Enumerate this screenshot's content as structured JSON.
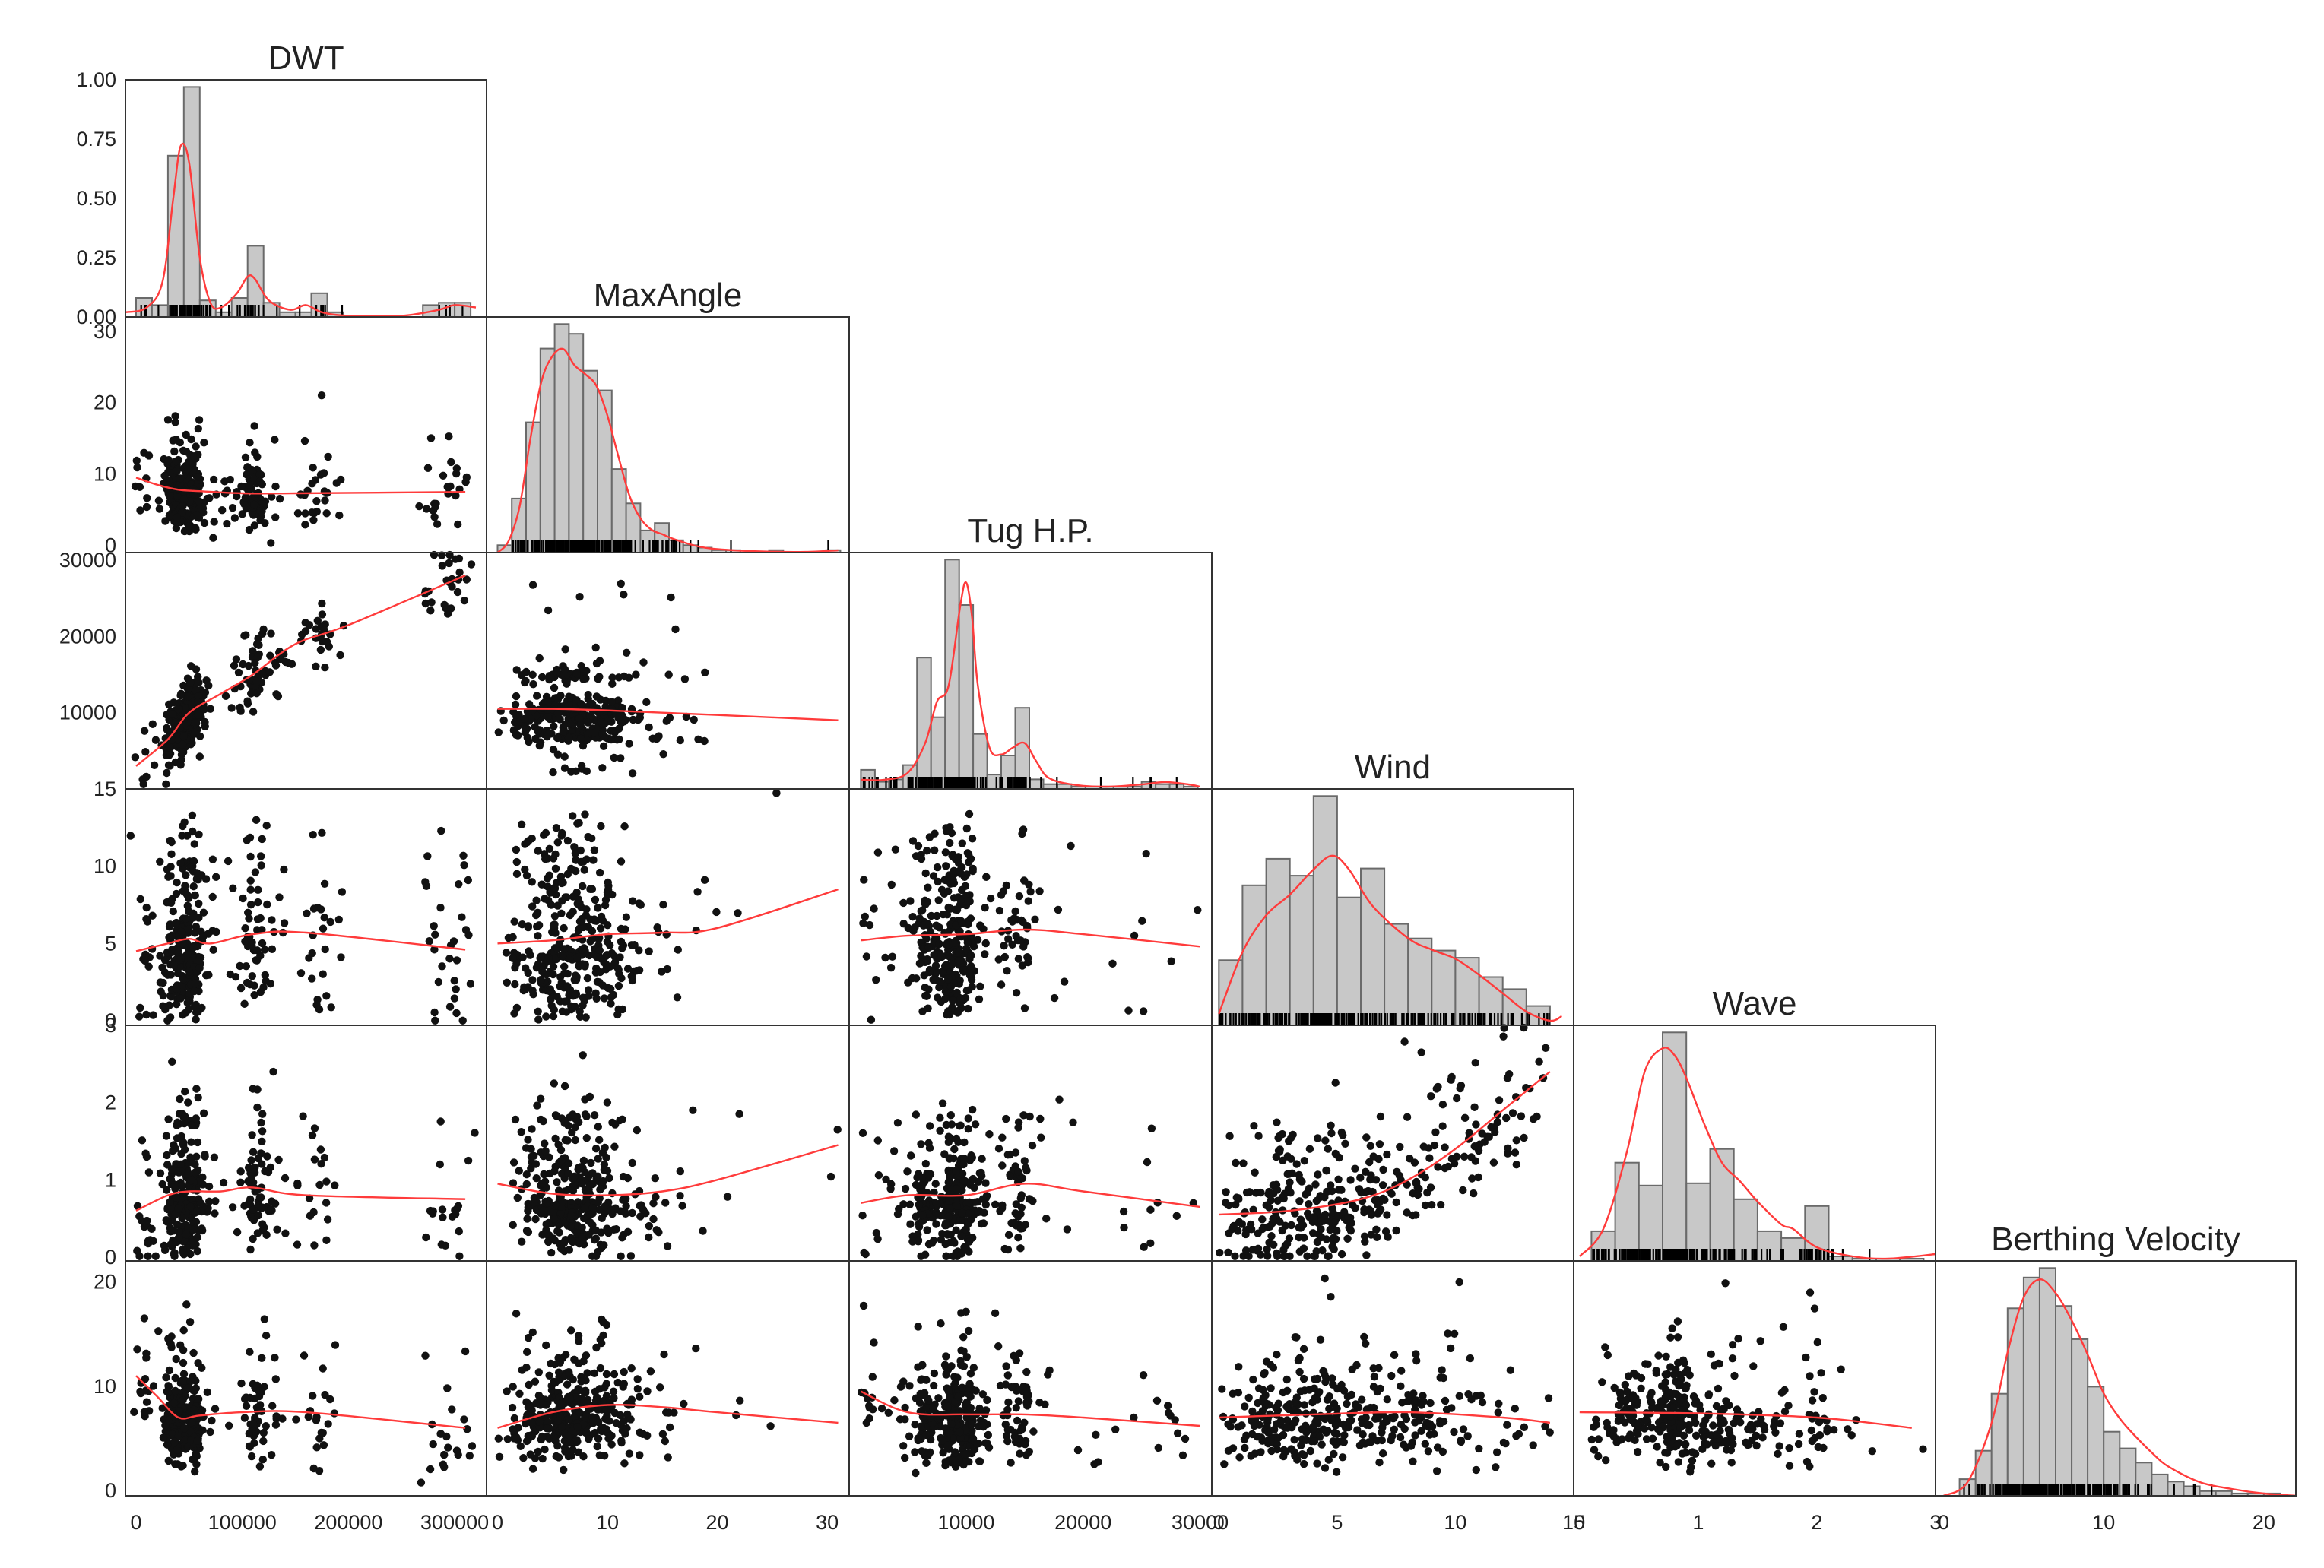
{
  "chart_data": {
    "type": "pairplot",
    "variables": [
      "DWT",
      "MaxAngle",
      "Tug H.P.",
      "Wind",
      "Wave",
      "Berthing Velocity"
    ],
    "diagonal": "histogram + KDE (red) + rug",
    "off_diagonal": "scatter + smoothed trend line (red)",
    "colors": {
      "points": "#111111",
      "trend": "#ff3b3b",
      "hist_fill": "#c8c8c8",
      "hist_edge": "#6a6a6a",
      "frame": "#333333"
    },
    "axes": {
      "DWT": {
        "range": [
          -10000,
          330000
        ],
        "ticks": [
          0,
          100000,
          200000,
          300000
        ],
        "tick_labels": [
          "0",
          "100000",
          "200000",
          "300000"
        ]
      },
      "MaxAngle": {
        "range": [
          -1,
          32
        ],
        "ticks": [
          0,
          10,
          20,
          30
        ],
        "tick_labels": [
          "0",
          "10",
          "20",
          "30"
        ]
      },
      "Tug H.P.": {
        "range": [
          0,
          31000
        ],
        "ticks": [
          10000,
          20000,
          30000
        ],
        "tick_labels": [
          "10000",
          "20000",
          "30000"
        ],
        "ticks_left": [
          10000,
          20000,
          30000
        ],
        "tick_labels_left": [
          "10000",
          "20000",
          "30000"
        ]
      },
      "Wind": {
        "range": [
          -0.3,
          15
        ],
        "ticks": [
          0,
          5,
          10,
          15
        ],
        "tick_labels": [
          "0",
          "5",
          "10",
          "15"
        ]
      },
      "Wave": {
        "range": [
          -0.05,
          3
        ],
        "ticks": [
          0,
          1,
          2,
          3
        ],
        "tick_labels": [
          "0",
          "1",
          "2",
          "3"
        ]
      },
      "Berthing Velocity": {
        "range": [
          -0.5,
          22
        ],
        "ticks": [
          0,
          10,
          20
        ],
        "tick_labels": [
          "0",
          "10",
          "20"
        ]
      }
    },
    "first_diag_y": {
      "ticks": [
        0.0,
        0.25,
        0.5,
        0.75,
        1.0
      ],
      "tick_labels": [
        "0.00",
        "0.25",
        "0.50",
        "0.75",
        "1.00"
      ]
    },
    "histograms": {
      "DWT": {
        "edges": [
          0,
          15000,
          30000,
          45000,
          60000,
          75000,
          90000,
          105000,
          120000,
          135000,
          150000,
          165000,
          180000,
          195000,
          210000,
          225000,
          240000,
          255000,
          270000,
          285000,
          300000,
          315000
        ],
        "heights": [
          0.08,
          0.05,
          0.68,
          0.97,
          0.07,
          0.02,
          0.08,
          0.3,
          0.06,
          0.02,
          0.02,
          0.1,
          0.02,
          0,
          0,
          0,
          0,
          0,
          0.05,
          0.06,
          0.06
        ]
      },
      "MaxAngle": {
        "edges": [
          0,
          1.3,
          2.6,
          3.9,
          5.2,
          6.5,
          7.8,
          9.1,
          10.4,
          11.7,
          13.0,
          14.3,
          15.6,
          16.9,
          18.2,
          19.5,
          20.8,
          22.1,
          23.4,
          24.7,
          26.0,
          27.3,
          28.6,
          29.9,
          31.2
        ],
        "heights": [
          0.03,
          0.22,
          0.53,
          0.83,
          0.93,
          0.89,
          0.74,
          0.66,
          0.34,
          0.2,
          0.09,
          0.12,
          0.05,
          0.03,
          0.02,
          0.01,
          0.01,
          0,
          0,
          0.01,
          0,
          0,
          0,
          0.01
        ]
      },
      "Tug H.P.": {
        "edges": [
          1000,
          2200,
          3400,
          4600,
          5800,
          7000,
          8200,
          9400,
          10600,
          11800,
          13000,
          14200,
          15400,
          16600,
          17800,
          19000,
          20200,
          21400,
          22600,
          23800,
          25000,
          26200,
          27400,
          28600,
          29800
        ],
        "heights": [
          0.08,
          0.03,
          0.04,
          0.1,
          0.55,
          0.3,
          0.96,
          0.77,
          0.23,
          0.06,
          0.14,
          0.34,
          0.04,
          0.02,
          0.02,
          0.01,
          0.01,
          0.01,
          0.01,
          0.01,
          0.03,
          0.02,
          0.02,
          0.01
        ]
      },
      "Wind": {
        "edges": [
          0,
          1,
          2,
          3,
          4,
          5,
          6,
          7,
          8,
          9,
          10,
          11,
          12,
          13,
          14
        ],
        "heights": [
          0.27,
          0.58,
          0.69,
          0.62,
          0.95,
          0.53,
          0.65,
          0.42,
          0.36,
          0.31,
          0.28,
          0.2,
          0.15,
          0.08
        ]
      },
      "Wave": {
        "edges": [
          0.1,
          0.3,
          0.5,
          0.7,
          0.9,
          1.1,
          1.3,
          1.5,
          1.7,
          1.9,
          2.1,
          2.3,
          2.5,
          2.7,
          2.9
        ],
        "heights": [
          0.13,
          0.43,
          0.33,
          1.0,
          0.34,
          0.49,
          0.27,
          0.13,
          0.1,
          0.24,
          0.02,
          0.01,
          0.01,
          0.01
        ]
      },
      "Berthing Velocity": {
        "edges": [
          1,
          2,
          3,
          4,
          5,
          6,
          7,
          8,
          9,
          10,
          11,
          12,
          13,
          14,
          15,
          16,
          17,
          18,
          19,
          20,
          21
        ],
        "heights": [
          0.07,
          0.19,
          0.43,
          0.79,
          0.92,
          0.96,
          0.8,
          0.66,
          0.46,
          0.27,
          0.2,
          0.14,
          0.09,
          0.06,
          0.04,
          0.02,
          0.02,
          0.01,
          0.01,
          0.01
        ]
      }
    },
    "kde": {
      "DWT": {
        "x": [
          -10000,
          10000,
          25000,
          35000,
          42000,
          50000,
          60000,
          70000,
          80000,
          95000,
          105000,
          112000,
          125000,
          145000,
          160000,
          175000,
          200000,
          250000,
          285000,
          300000,
          320000
        ],
        "y": [
          0.02,
          0.04,
          0.15,
          0.5,
          0.72,
          0.65,
          0.25,
          0.06,
          0.04,
          0.1,
          0.17,
          0.16,
          0.07,
          0.03,
          0.05,
          0.02,
          0.005,
          0.005,
          0.03,
          0.05,
          0.04
        ]
      },
      "MaxAngle": {
        "x": [
          0,
          1,
          2,
          3,
          4,
          5,
          6,
          7,
          8,
          9,
          10,
          11,
          12,
          13,
          14,
          15,
          16,
          18,
          20,
          24,
          28,
          31
        ],
        "y": [
          0,
          0.05,
          0.2,
          0.5,
          0.75,
          0.86,
          0.89,
          0.82,
          0.78,
          0.73,
          0.6,
          0.42,
          0.25,
          0.15,
          0.1,
          0.08,
          0.06,
          0.03,
          0.015,
          0.005,
          0.003,
          0.01
        ]
      },
      "Tug H.P.": {
        "x": [
          1000,
          3000,
          5000,
          6500,
          7500,
          8500,
          9500,
          10000,
          10500,
          11000,
          12000,
          13000,
          14000,
          15000,
          16000,
          17000,
          19000,
          22000,
          25000,
          27000,
          29000,
          30000
        ],
        "y": [
          0.04,
          0.04,
          0.07,
          0.2,
          0.38,
          0.45,
          0.8,
          0.9,
          0.75,
          0.45,
          0.18,
          0.15,
          0.18,
          0.2,
          0.12,
          0.05,
          0.02,
          0.01,
          0.02,
          0.03,
          0.02,
          0.01
        ]
      },
      "Wind": {
        "x": [
          0,
          1,
          2,
          3,
          4,
          4.8,
          5.5,
          6.5,
          8,
          9,
          10,
          11,
          12,
          13,
          14,
          14.5
        ],
        "y": [
          0.05,
          0.32,
          0.48,
          0.57,
          0.68,
          0.74,
          0.68,
          0.52,
          0.38,
          0.33,
          0.29,
          0.22,
          0.14,
          0.06,
          0.02,
          0.04
        ]
      },
      "Wave": {
        "x": [
          0,
          0.2,
          0.4,
          0.55,
          0.7,
          0.8,
          0.9,
          1.05,
          1.2,
          1.35,
          1.5,
          1.7,
          1.8,
          2.0,
          2.3,
          2.6,
          3.0
        ],
        "y": [
          0.02,
          0.14,
          0.48,
          0.83,
          0.93,
          0.9,
          0.8,
          0.6,
          0.43,
          0.35,
          0.26,
          0.16,
          0.14,
          0.06,
          0.02,
          0.01,
          0.03
        ]
      },
      "Berthing Velocity": {
        "x": [
          0,
          1.5,
          3,
          4,
          5,
          6,
          7,
          8,
          9,
          10,
          11,
          12,
          13,
          14,
          16,
          18,
          20,
          22
        ],
        "y": [
          0,
          0.06,
          0.32,
          0.63,
          0.87,
          0.95,
          0.89,
          0.77,
          0.62,
          0.45,
          0.34,
          0.26,
          0.19,
          0.13,
          0.06,
          0.03,
          0.01,
          0
        ]
      }
    },
    "scatter_trends": [
      {
        "x": "DWT",
        "y": "MaxAngle",
        "trend_x": [
          0,
          20000,
          40000,
          60000,
          100000,
          150000,
          310000
        ],
        "trend_y": [
          9.5,
          8.5,
          7.8,
          7.6,
          7.3,
          7.3,
          7.5
        ]
      },
      {
        "x": "DWT",
        "y": "Tug H.P.",
        "trend_x": [
          0,
          30000,
          50000,
          80000,
          110000,
          150000,
          200000,
          310000
        ],
        "trend_y": [
          3000,
          6500,
          10000,
          12500,
          15000,
          19000,
          21500,
          28000
        ]
      },
      {
        "x": "MaxAngle",
        "y": "Tug H.P.",
        "trend_x": [
          0,
          5,
          10,
          15,
          20,
          31
        ],
        "trend_y": [
          10500,
          10500,
          10300,
          10000,
          9700,
          9000
        ]
      },
      {
        "x": "DWT",
        "y": "Wind",
        "trend_x": [
          0,
          30000,
          50000,
          70000,
          110000,
          160000,
          310000
        ],
        "trend_y": [
          4.5,
          5.0,
          5.3,
          5.0,
          5.6,
          5.7,
          4.6
        ]
      },
      {
        "x": "MaxAngle",
        "y": "Wind",
        "trend_x": [
          0,
          5,
          10,
          15,
          20,
          31
        ],
        "trend_y": [
          5.0,
          5.2,
          5.6,
          5.7,
          6.0,
          8.5
        ]
      },
      {
        "x": "Tug H.P.",
        "y": "Wind",
        "trend_x": [
          1000,
          5000,
          10000,
          15000,
          20000,
          30000
        ],
        "trend_y": [
          5.2,
          5.5,
          5.6,
          5.9,
          5.6,
          4.8
        ]
      },
      {
        "x": "DWT",
        "y": "Wave",
        "trend_x": [
          0,
          30000,
          50000,
          80000,
          110000,
          160000,
          310000
        ],
        "trend_y": [
          0.6,
          0.8,
          0.85,
          0.85,
          0.9,
          0.8,
          0.75
        ]
      },
      {
        "x": "MaxAngle",
        "y": "Wave",
        "trend_x": [
          0,
          5,
          10,
          15,
          20,
          31
        ],
        "trend_y": [
          0.95,
          0.82,
          0.8,
          0.85,
          1.0,
          1.45
        ]
      },
      {
        "x": "Tug H.P.",
        "y": "Wave",
        "trend_x": [
          1000,
          5000,
          10000,
          15000,
          20000,
          30000
        ],
        "trend_y": [
          0.7,
          0.8,
          0.8,
          0.95,
          0.85,
          0.65
        ]
      },
      {
        "x": "Wind",
        "y": "Wave",
        "trend_x": [
          0,
          3,
          6,
          8,
          10,
          12,
          14
        ],
        "trend_y": [
          0.55,
          0.6,
          0.75,
          1.0,
          1.4,
          1.9,
          2.4
        ]
      },
      {
        "x": "DWT",
        "y": "Berthing Velocity",
        "trend_x": [
          0,
          20000,
          40000,
          60000,
          100000,
          160000,
          310000
        ],
        "trend_y": [
          11,
          9.0,
          7.0,
          7.2,
          7.5,
          7.5,
          6.0
        ]
      },
      {
        "x": "MaxAngle",
        "y": "Berthing Velocity",
        "trend_x": [
          0,
          5,
          10,
          15,
          20,
          31
        ],
        "trend_y": [
          6.0,
          7.5,
          8.2,
          8.0,
          7.5,
          6.5
        ]
      },
      {
        "x": "Tug H.P.",
        "y": "Berthing Velocity",
        "trend_x": [
          1000,
          5000,
          10000,
          15000,
          20000,
          30000
        ],
        "trend_y": [
          9.5,
          7.5,
          7.3,
          7.3,
          7.0,
          6.2
        ]
      },
      {
        "x": "Wind",
        "y": "Berthing Velocity",
        "trend_x": [
          0,
          4,
          8,
          12,
          14
        ],
        "trend_y": [
          7.0,
          7.3,
          7.5,
          7.0,
          6.5
        ]
      },
      {
        "x": "Wave",
        "y": "Berthing Velocity",
        "trend_x": [
          0,
          1,
          2,
          2.8
        ],
        "trend_y": [
          7.5,
          7.4,
          7.0,
          6.0
        ]
      }
    ],
    "legend": "none"
  }
}
